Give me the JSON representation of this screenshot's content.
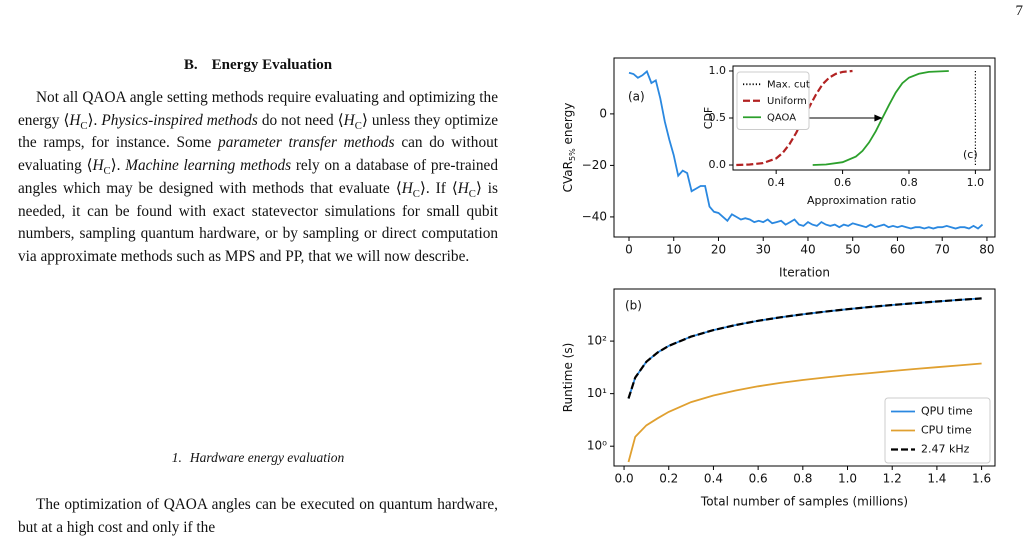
{
  "page_number": "7",
  "section": {
    "number": "B.",
    "title": "Energy Evaluation"
  },
  "paragraphs": [
    [
      "Not all QAOA angle setting methods require evaluating and optimizing the energy ⟨",
      {
        "m": "H",
        "sub": "C"
      },
      "⟩. ",
      {
        "i": "Physics-inspired methods"
      },
      " do not need ⟨",
      {
        "m": "H",
        "sub": "C"
      },
      "⟩ unless they optimize the ramps, for instance. Some ",
      {
        "i": "parameter transfer methods"
      },
      " can do without evaluating ⟨",
      {
        "m": "H",
        "sub": "C"
      },
      "⟩. ",
      {
        "i": "Machine learning methods"
      },
      " rely on a database of pre-trained angles which may be designed with methods that evaluate ⟨",
      {
        "m": "H",
        "sub": "C"
      },
      "⟩. If ⟨",
      {
        "m": "H",
        "sub": "C"
      },
      "⟩ is needed, it can be found with exact statevector simulations for small qubit numbers, sampling quantum hardware, or by sampling or direct computation via approximate methods such as MPS and PP, that we will now describe."
    ],
    [
      "The optimization of QAOA angles can be executed on quantum hardware, but at a high cost and only if the"
    ]
  ],
  "subsection": {
    "number": "1.",
    "title": "Hardware energy evaluation"
  },
  "chart_data": [
    {
      "type": "line",
      "label": "(a)",
      "xlabel": "Iteration",
      "ylabel": [
        "CVaR",
        {
          "sub": "5%"
        },
        " energy"
      ],
      "x": [
        0,
        1,
        2,
        3,
        4,
        5,
        6,
        7,
        8,
        9,
        10,
        11,
        12,
        13,
        14,
        15,
        16,
        17,
        18,
        19,
        20,
        21,
        22,
        23,
        24,
        25,
        26,
        27,
        28,
        29,
        30,
        31,
        32,
        33,
        34,
        35,
        36,
        37,
        38,
        39,
        40,
        41,
        42,
        43,
        44,
        45,
        46,
        47,
        48,
        49,
        50,
        51,
        52,
        53,
        54,
        55,
        56,
        57,
        58,
        59,
        60,
        61,
        62,
        63,
        64,
        65,
        66,
        67,
        68,
        69,
        70,
        71,
        72,
        73,
        74,
        75,
        76,
        77,
        78,
        79
      ],
      "series": [
        {
          "name": "CVaR",
          "color": "#2a88e0",
          "style": "solid",
          "values": [
            16,
            15.5,
            14,
            15,
            16.5,
            12,
            13,
            6,
            -3,
            -10,
            -16,
            -24,
            -22,
            -23,
            -30,
            -29,
            -28,
            -28,
            -36,
            -38,
            -38.5,
            -40,
            -41.5,
            -39,
            -40,
            -41,
            -40.5,
            -41,
            -42,
            -41.5,
            -42,
            -41,
            -42.5,
            -42,
            -41.5,
            -43,
            -42,
            -41,
            -43,
            -43.5,
            -42,
            -43,
            -43.5,
            -42,
            -43,
            -43.5,
            -43,
            -44,
            -43,
            -43.5,
            -42.5,
            -43,
            -43.5,
            -44,
            -43,
            -44,
            -43.5,
            -43,
            -44,
            -43.5,
            -44,
            -43.5,
            -44,
            -44.5,
            -44,
            -44,
            -44.5,
            -44,
            -44.5,
            -44,
            -44,
            -43.5,
            -44,
            -44.5,
            -44,
            -44,
            -44.5,
            -43.5,
            -44.5,
            -43
          ]
        }
      ],
      "xlim": [
        -3.35,
        81.8
      ],
      "xticks": [
        0,
        10,
        20,
        30,
        40,
        50,
        60,
        70,
        80
      ],
      "ylim": [
        -47.8,
        21.7
      ],
      "yticks": [
        {
          "value": -40,
          "label": "−40"
        },
        {
          "value": -20,
          "label": "−20"
        },
        0
      ],
      "legend": false
    },
    {
      "type": "line",
      "label": "(c)",
      "xlabel": "Approximation ratio",
      "ylabel": [
        "CDF"
      ],
      "series": [
        {
          "name": "Max. cut",
          "color": "#000000",
          "style": "dotted",
          "x": [
            1.0,
            1.0
          ],
          "values": [
            0,
            1
          ]
        },
        {
          "name": "Uniform",
          "color": "#b22222",
          "style": "dashed",
          "x": [
            0.28,
            0.32,
            0.36,
            0.4,
            0.42,
            0.44,
            0.46,
            0.48,
            0.5,
            0.52,
            0.54,
            0.56,
            0.58,
            0.6,
            0.63
          ],
          "values": [
            0,
            0.005,
            0.02,
            0.07,
            0.13,
            0.22,
            0.34,
            0.48,
            0.62,
            0.75,
            0.86,
            0.93,
            0.97,
            0.99,
            1.0
          ]
        },
        {
          "name": "QAOA",
          "color": "#2ca02c",
          "style": "solid",
          "x": [
            0.51,
            0.55,
            0.6,
            0.64,
            0.66,
            0.68,
            0.7,
            0.72,
            0.74,
            0.76,
            0.78,
            0.8,
            0.83,
            0.86,
            0.92
          ],
          "values": [
            0,
            0.005,
            0.03,
            0.09,
            0.15,
            0.24,
            0.36,
            0.5,
            0.64,
            0.77,
            0.87,
            0.93,
            0.97,
            0.99,
            1.0
          ]
        }
      ],
      "arrow": {
        "x": [
          0.5,
          0.72
        ],
        "y": [
          0.5,
          0.5
        ]
      },
      "xlim": [
        0.27,
        1.044
      ],
      "xticks": [
        0.4,
        0.6,
        0.8,
        {
          "value": 1,
          "label": "1.0"
        }
      ],
      "ylim": [
        -0.053,
        1.053
      ],
      "yticks": [
        {
          "value": 0,
          "label": "0.0"
        },
        0.5,
        {
          "value": 1,
          "label": "1.0"
        }
      ],
      "legend": "upper left"
    },
    {
      "type": "line",
      "label": "(b)",
      "xlabel": "Total number of samples (millions)",
      "ylabel": [
        "Runtime (s)"
      ],
      "log_y": true,
      "x": [
        0.02,
        0.05,
        0.1,
        0.15,
        0.2,
        0.3,
        0.4,
        0.5,
        0.6,
        0.7,
        0.8,
        0.9,
        1.0,
        1.1,
        1.2,
        1.3,
        1.4,
        1.5,
        1.6
      ],
      "series": [
        {
          "name": "QPU time",
          "color": "#2a88e0",
          "style": "solid",
          "values": [
            8.1,
            20.2,
            40.5,
            60.7,
            81,
            121.5,
            161.9,
            202.4,
            242.9,
            283.4,
            323.9,
            364.4,
            404.9,
            445.3,
            485.8,
            526.3,
            566.8,
            607.3,
            647.8
          ]
        },
        {
          "name": "CPU time",
          "color": "#e0a030",
          "style": "solid",
          "values": [
            0.5,
            1.5,
            2.5,
            3.4,
            4.5,
            6.9,
            9.2,
            11.5,
            13.8,
            16,
            18.2,
            20.3,
            22.5,
            24.6,
            27,
            29.5,
            31.8,
            34.5,
            37.5
          ]
        },
        {
          "name": "2.47 kHz",
          "color": "#000000",
          "style": "dashed",
          "values": [
            8.1,
            20.2,
            40.5,
            60.7,
            81,
            121.5,
            161.9,
            202.4,
            242.9,
            283.4,
            323.9,
            364.4,
            404.9,
            445.3,
            485.8,
            526.3,
            566.8,
            607.3,
            647.8
          ]
        }
      ],
      "xlim": [
        -0.045,
        1.66
      ],
      "xticks": [
        {
          "value": 0,
          "label": "0.0"
        },
        0.2,
        0.4,
        0.6,
        0.8,
        {
          "value": 1,
          "label": "1.0"
        },
        1.2,
        1.4,
        1.6
      ],
      "ylim": [
        0.42,
        980
      ],
      "yticks": [
        {
          "value": 1,
          "label": "10⁰"
        },
        {
          "value": 10,
          "label": "10¹"
        },
        {
          "value": 100,
          "label": "10²"
        }
      ],
      "legend": "lower right"
    }
  ]
}
